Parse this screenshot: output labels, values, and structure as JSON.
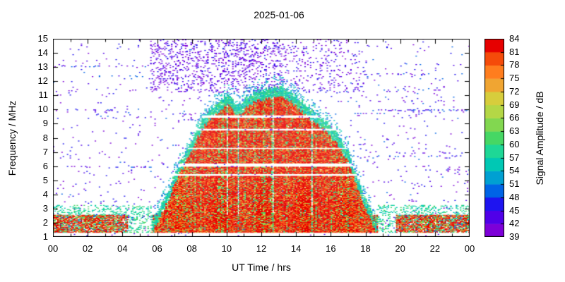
{
  "chart_data": {
    "type": "heatmap",
    "title": "2025-01-06",
    "xlabel": "UT Time / hrs",
    "ylabel": "Frequency / MHz",
    "xlim": [
      0,
      24
    ],
    "ylim": [
      1,
      15
    ],
    "x_tick_hours": [
      0,
      2,
      4,
      6,
      8,
      10,
      12,
      14,
      16,
      18,
      20,
      22,
      24
    ],
    "x_tick_labels": [
      "00",
      "02",
      "04",
      "06",
      "08",
      "10",
      "12",
      "14",
      "16",
      "18",
      "20",
      "22",
      "00"
    ],
    "x_minor_step": 1,
    "y_ticks": [
      1,
      2,
      3,
      4,
      5,
      6,
      7,
      8,
      9,
      10,
      11,
      12,
      13,
      14,
      15
    ],
    "grid": false,
    "colorbar": {
      "label": "Signal Amplitude / dB",
      "min": 39,
      "max": 84,
      "tick_step": 3,
      "ticks": [
        39,
        42,
        45,
        48,
        51,
        54,
        57,
        60,
        63,
        66,
        69,
        72,
        75,
        78,
        81,
        84
      ],
      "colors": [
        "#7d00d8",
        "#5000e8",
        "#1e14f0",
        "#0064e6",
        "#00a0d2",
        "#00c8b4",
        "#1ed796",
        "#46d764",
        "#82d750",
        "#b4d746",
        "#d7cd3c",
        "#f0a532",
        "#ff7d1e",
        "#f54b0a",
        "#e60000"
      ]
    },
    "spectrogram": {
      "seed": 20250106,
      "dome": {
        "t": [
          5.7,
          6.0,
          6.3,
          6.6,
          6.9,
          7.2,
          7.5,
          7.8,
          8.1,
          8.4,
          8.7,
          9.0,
          9.3,
          9.6,
          9.9,
          10.1,
          10.35,
          10.6,
          10.85,
          11.1,
          11.4,
          11.7,
          12.0,
          12.3,
          12.6,
          12.9,
          13.2,
          13.5,
          13.8,
          14.1,
          14.4,
          14.7,
          15.0,
          15.3,
          15.6,
          15.9,
          16.2,
          16.5,
          16.8,
          17.1,
          17.4,
          17.7,
          18.0,
          18.3,
          18.6
        ],
        "fof2": [
          1.8,
          2.4,
          3.1,
          3.9,
          4.8,
          5.7,
          6.4,
          7.1,
          7.8,
          8.6,
          9.2,
          9.7,
          10.0,
          10.2,
          10.7,
          10.9,
          10.4,
          10.0,
          10.2,
          10.5,
          10.8,
          11.0,
          11.1,
          11.2,
          11.3,
          11.4,
          11.3,
          11.1,
          10.9,
          10.6,
          10.3,
          10.0,
          9.6,
          9.3,
          9.0,
          8.7,
          8.3,
          7.8,
          7.2,
          6.5,
          5.5,
          4.5,
          3.5,
          2.6,
          1.9
        ],
        "f_base": 1.3,
        "edge_width": 0.45
      },
      "white_bands_mhz": [
        [
          5.3,
          5.46
        ],
        [
          5.96,
          6.2
        ],
        [
          7.18,
          7.28
        ],
        [
          8.5,
          8.66
        ],
        [
          9.4,
          9.6
        ]
      ],
      "low_band": {
        "f0": 1.3,
        "f1": 2.55,
        "gaps_t": [
          [
            4.35,
            5.72
          ],
          [
            18.72,
            19.75
          ]
        ]
      },
      "cyan_fringe": {
        "f1": 3.25,
        "density": 0.22
      },
      "purple_block": {
        "t0": 5.6,
        "t1": 17.7,
        "f0": 11.2,
        "f1": 15.0,
        "t_split": 13.3,
        "density_left": 0.13,
        "density_right": 0.06
      },
      "fixed_rows": [
        {
          "f": 9.95,
          "t0": 18.3,
          "t1": 24,
          "den": 0.2
        },
        {
          "f": 9.95,
          "t0": 0,
          "t1": 3.8,
          "den": 0.12
        },
        {
          "f": 12.5,
          "t0": 17.8,
          "t1": 24,
          "den": 0.1
        },
        {
          "f": 13.05,
          "t0": 0,
          "t1": 5.4,
          "den": 0.09
        }
      ],
      "random_row_count": 24,
      "background_noise_density": 0.013
    }
  }
}
